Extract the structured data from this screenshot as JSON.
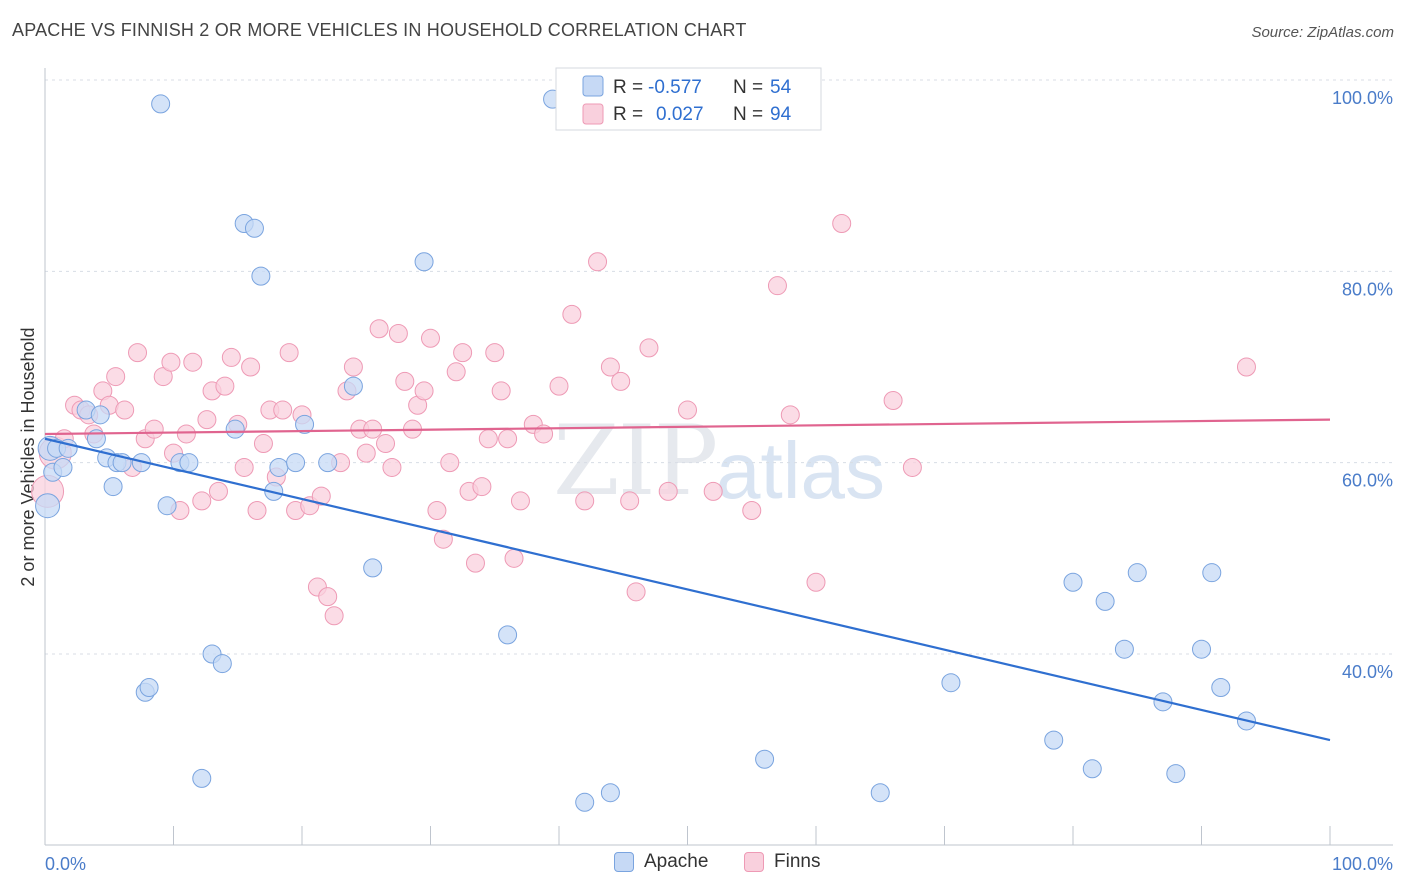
{
  "title": "APACHE VS FINNISH 2 OR MORE VEHICLES IN HOUSEHOLD CORRELATION CHART",
  "source": "Source: ZipAtlas.com",
  "watermark": {
    "zip": "ZIP",
    "atlas": "atlas"
  },
  "colors": {
    "apache_fill": "#c6d9f5",
    "apache_stroke": "#7aa4df",
    "apache_line": "#2f6fd0",
    "finns_fill": "#f9d0dd",
    "finns_stroke": "#ee9ab5",
    "finns_line": "#e0648f",
    "grid": "#d8dde5",
    "axis": "#bfc5ce",
    "tick_label": "#4a7cc9"
  },
  "legend": {
    "rows": [
      {
        "r_label": "R =",
        "r_value": "-0.577",
        "n_label": "N =",
        "n_value": "54"
      },
      {
        "r_label": "R =",
        "r_value": "0.027",
        "n_label": "N =",
        "n_value": "94"
      }
    ]
  },
  "chart_data": {
    "type": "scatter",
    "title": "APACHE VS FINNISH 2 OR MORE VEHICLES IN HOUSEHOLD CORRELATION CHART",
    "xlabel": "",
    "ylabel": "2 or more Vehicles in Household",
    "xlim": [
      0,
      100
    ],
    "ylim": [
      22,
      100
    ],
    "x_tick_labels": [
      "0.0%",
      "100.0%"
    ],
    "y_ticks": [
      40,
      60,
      80,
      100
    ],
    "y_tick_labels": [
      "40.0%",
      "60.0%",
      "80.0%",
      "100.0%"
    ],
    "legend_position": "top-center",
    "series": [
      {
        "name": "Apache",
        "r": -0.577,
        "n": 54,
        "trend": [
          [
            0,
            62.5
          ],
          [
            100,
            31.0
          ]
        ],
        "points": [
          [
            0.2,
            55.5
          ],
          [
            0.4,
            61.5
          ],
          [
            0.6,
            59.0
          ],
          [
            0.9,
            61.5
          ],
          [
            1.4,
            59.5
          ],
          [
            1.8,
            61.5
          ],
          [
            3.2,
            65.5
          ],
          [
            4.0,
            62.5
          ],
          [
            4.3,
            65.0
          ],
          [
            4.8,
            60.5
          ],
          [
            5.3,
            57.5
          ],
          [
            5.6,
            60.0
          ],
          [
            6.0,
            60.0
          ],
          [
            7.5,
            60.0
          ],
          [
            7.8,
            36.0
          ],
          [
            8.1,
            36.5
          ],
          [
            9.0,
            97.5
          ],
          [
            9.5,
            55.5
          ],
          [
            10.5,
            60.0
          ],
          [
            11.2,
            60.0
          ],
          [
            12.2,
            27.0
          ],
          [
            13.0,
            40.0
          ],
          [
            13.8,
            39.0
          ],
          [
            14.8,
            63.5
          ],
          [
            15.5,
            85.0
          ],
          [
            16.3,
            84.5
          ],
          [
            16.8,
            79.5
          ],
          [
            17.8,
            57.0
          ],
          [
            18.2,
            59.5
          ],
          [
            19.5,
            60.0
          ],
          [
            20.2,
            64.0
          ],
          [
            22.0,
            60.0
          ],
          [
            24.0,
            68.0
          ],
          [
            25.5,
            49.0
          ],
          [
            29.5,
            81.0
          ],
          [
            36.0,
            42.0
          ],
          [
            39.5,
            98.0
          ],
          [
            42.0,
            24.5
          ],
          [
            44.0,
            25.5
          ],
          [
            56.0,
            29.0
          ],
          [
            65.0,
            25.5
          ],
          [
            70.5,
            37.0
          ],
          [
            78.5,
            31.0
          ],
          [
            80.0,
            47.5
          ],
          [
            81.5,
            28.0
          ],
          [
            82.5,
            45.5
          ],
          [
            84.0,
            40.5
          ],
          [
            85.0,
            48.5
          ],
          [
            87.0,
            35.0
          ],
          [
            88.0,
            27.5
          ],
          [
            90.0,
            40.5
          ],
          [
            90.8,
            48.5
          ],
          [
            91.5,
            36.5
          ],
          [
            93.5,
            33.0
          ]
        ]
      },
      {
        "name": "Finns",
        "r": 0.027,
        "n": 94,
        "trend": [
          [
            0,
            63.0
          ],
          [
            100,
            64.5
          ]
        ],
        "points": [
          [
            0.2,
            57.0
          ],
          [
            0.8,
            61.0
          ],
          [
            1.5,
            62.5
          ],
          [
            2.3,
            66.0
          ],
          [
            2.8,
            65.5
          ],
          [
            3.4,
            65.0
          ],
          [
            3.8,
            63.0
          ],
          [
            4.5,
            67.5
          ],
          [
            5.0,
            66.0
          ],
          [
            5.5,
            69.0
          ],
          [
            6.2,
            65.5
          ],
          [
            6.8,
            59.5
          ],
          [
            7.2,
            71.5
          ],
          [
            7.8,
            62.5
          ],
          [
            8.5,
            63.5
          ],
          [
            9.2,
            69.0
          ],
          [
            9.8,
            70.5
          ],
          [
            10.0,
            61.0
          ],
          [
            10.5,
            55.0
          ],
          [
            11.0,
            63.0
          ],
          [
            11.5,
            70.5
          ],
          [
            12.2,
            56.0
          ],
          [
            12.6,
            64.5
          ],
          [
            13.0,
            67.5
          ],
          [
            13.5,
            57.0
          ],
          [
            14.0,
            68.0
          ],
          [
            14.5,
            71.0
          ],
          [
            15.0,
            64.0
          ],
          [
            15.5,
            59.5
          ],
          [
            16.0,
            70.0
          ],
          [
            16.5,
            55.0
          ],
          [
            17.0,
            62.0
          ],
          [
            17.5,
            65.5
          ],
          [
            18.0,
            58.5
          ],
          [
            18.5,
            65.5
          ],
          [
            19.0,
            71.5
          ],
          [
            19.5,
            55.0
          ],
          [
            20.0,
            65.0
          ],
          [
            20.6,
            55.5
          ],
          [
            21.2,
            47.0
          ],
          [
            21.5,
            56.5
          ],
          [
            22.0,
            46.0
          ],
          [
            22.5,
            44.0
          ],
          [
            23.0,
            60.0
          ],
          [
            23.5,
            67.5
          ],
          [
            24.0,
            70.0
          ],
          [
            24.5,
            63.5
          ],
          [
            25.0,
            61.0
          ],
          [
            25.5,
            63.5
          ],
          [
            26.0,
            74.0
          ],
          [
            26.5,
            62.0
          ],
          [
            27.0,
            59.5
          ],
          [
            27.5,
            73.5
          ],
          [
            28.0,
            68.5
          ],
          [
            28.6,
            63.5
          ],
          [
            29.0,
            66.0
          ],
          [
            29.5,
            67.5
          ],
          [
            30.0,
            73.0
          ],
          [
            30.5,
            55.0
          ],
          [
            31.0,
            52.0
          ],
          [
            31.5,
            60.0
          ],
          [
            32.0,
            69.5
          ],
          [
            32.5,
            71.5
          ],
          [
            33.0,
            57.0
          ],
          [
            33.5,
            49.5
          ],
          [
            34.0,
            57.5
          ],
          [
            34.5,
            62.5
          ],
          [
            35.0,
            71.5
          ],
          [
            35.5,
            67.5
          ],
          [
            36.0,
            62.5
          ],
          [
            36.5,
            50.0
          ],
          [
            37.0,
            56.0
          ],
          [
            38.0,
            64.0
          ],
          [
            38.8,
            63.0
          ],
          [
            40.0,
            68.0
          ],
          [
            41.0,
            75.5
          ],
          [
            42.0,
            56.0
          ],
          [
            43.0,
            81.0
          ],
          [
            44.0,
            70.0
          ],
          [
            44.8,
            68.5
          ],
          [
            45.5,
            56.0
          ],
          [
            46.0,
            46.5
          ],
          [
            47.0,
            72.0
          ],
          [
            48.5,
            57.0
          ],
          [
            50.0,
            65.5
          ],
          [
            52.0,
            57.0
          ],
          [
            55.0,
            55.0
          ],
          [
            57.0,
            78.5
          ],
          [
            58.0,
            65.0
          ],
          [
            60.0,
            47.5
          ],
          [
            62.0,
            85.0
          ],
          [
            66.0,
            66.5
          ],
          [
            67.5,
            59.5
          ],
          [
            93.5,
            70.0
          ]
        ]
      }
    ]
  }
}
